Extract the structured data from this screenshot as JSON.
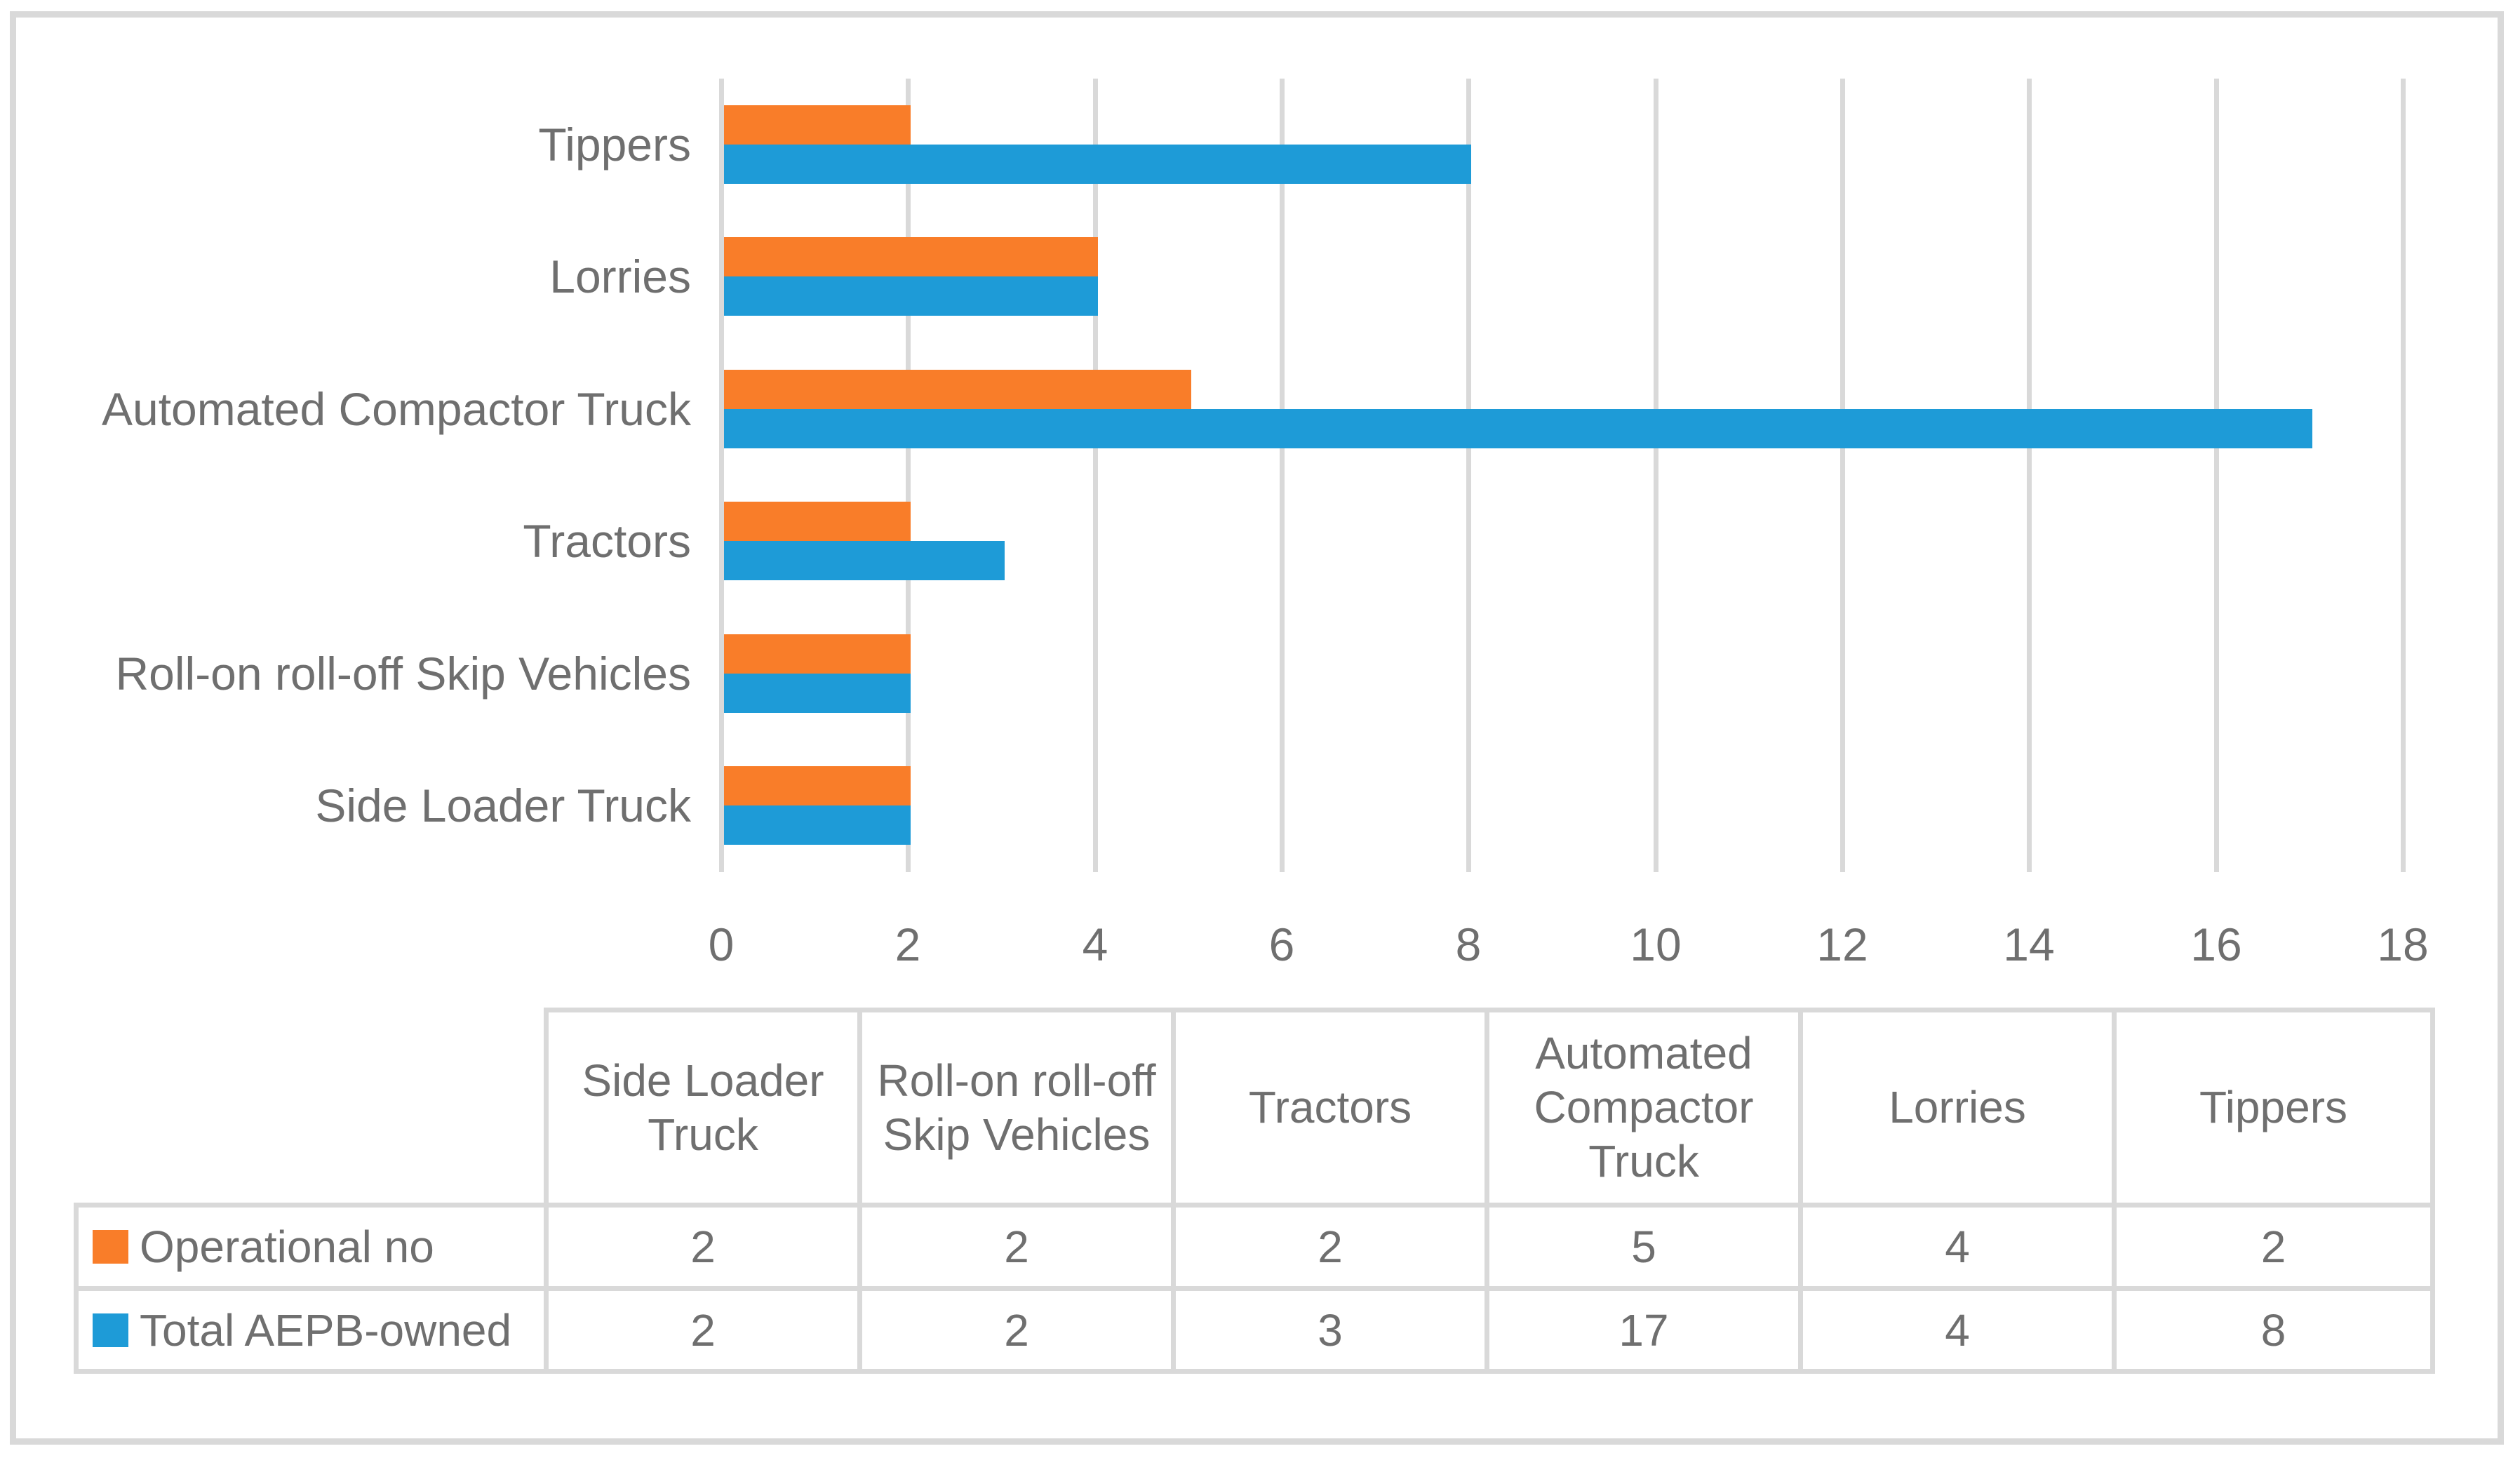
{
  "chart_data": {
    "type": "bar",
    "orientation": "horizontal",
    "title": "",
    "categories": [
      "Side Loader Truck",
      "Roll-on roll-off Skip Vehicles",
      "Tractors",
      "Automated Compactor Truck",
      "Lorries",
      "Tippers"
    ],
    "series": [
      {
        "name": "Operational no",
        "color": "#F97D29",
        "values": [
          2,
          2,
          2,
          5,
          4,
          2
        ]
      },
      {
        "name": "Total AEPB-owned",
        "color": "#1E9BD7",
        "values": [
          2,
          2,
          3,
          17,
          4,
          8
        ]
      }
    ],
    "xlabel": "",
    "ylabel": "",
    "xlim": [
      0,
      18
    ],
    "xticks": [
      0,
      2,
      4,
      6,
      8,
      10,
      12,
      14,
      16,
      18
    ],
    "xtick_labels": [
      "0",
      "2",
      "4",
      "6",
      "8",
      "10",
      "12",
      "14",
      "16",
      "18"
    ],
    "grid": true,
    "legend_position": "data-table-left"
  },
  "data_table": {
    "columns": [
      "Side Loader Truck",
      "Roll-on roll-off Skip Vehicles",
      "Tractors",
      "Automated Compactor Truck",
      "Lorries",
      "Tippers"
    ],
    "rows": [
      {
        "label": "Operational no",
        "swatch_color": "#F97D29",
        "values": [
          "2",
          "2",
          "2",
          "5",
          "4",
          "2"
        ]
      },
      {
        "label": "Total AEPB-owned",
        "swatch_color": "#1E9BD7",
        "values": [
          "2",
          "2",
          "3",
          "17",
          "4",
          "8"
        ]
      }
    ]
  },
  "colors": {
    "series_1": "#F97D29",
    "series_2": "#1E9BD7",
    "gridline": "#D9D9D9",
    "table_border": "#D9D9D9",
    "text": "#6F6F6F",
    "frame_border": "#D9D9D9",
    "background": "#FFFFFF"
  }
}
